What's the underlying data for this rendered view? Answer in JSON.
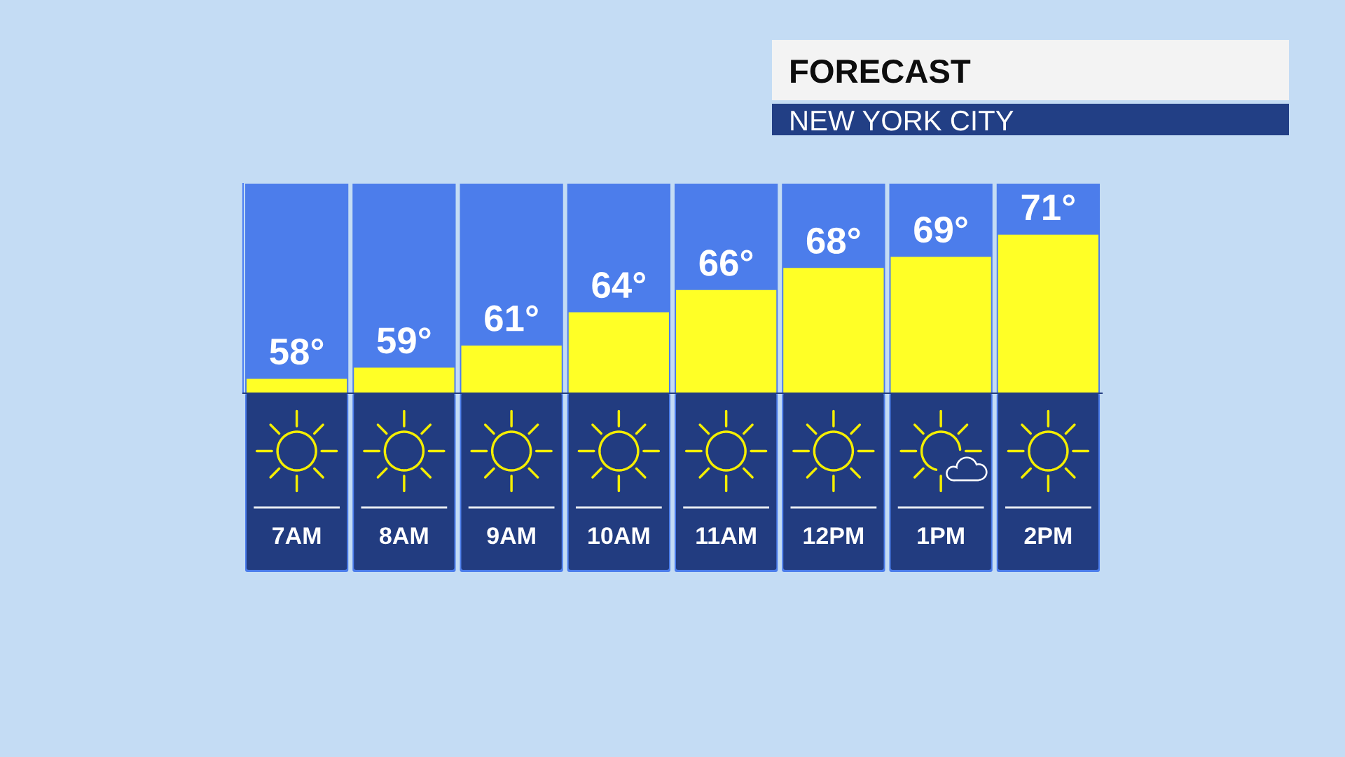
{
  "chart_data": {
    "type": "bar",
    "title": "FORECAST",
    "subtitle": "NEW YORK CITY",
    "categories": [
      "7AM",
      "8AM",
      "9AM",
      "10AM",
      "11AM",
      "12PM",
      "1PM",
      "2PM"
    ],
    "values": [
      58,
      59,
      61,
      64,
      66,
      68,
      69,
      71
    ],
    "value_labels": [
      "58°",
      "59°",
      "61°",
      "64°",
      "66°",
      "68°",
      "69°",
      "71°"
    ],
    "color": "#ffff26",
    "ylim": [
      56.7,
      75.6
    ],
    "tick_labels": "x",
    "grid": false
  }
}
